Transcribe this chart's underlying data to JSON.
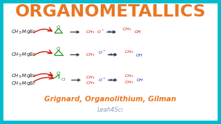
{
  "title": "ORGANOMETALLICS",
  "title_color": "#E87722",
  "title_fontsize": 18,
  "subtitle": "Grignard, Organolithium, Gilman",
  "subtitle_color": "#E87722",
  "subtitle_fontsize": 7.5,
  "watermark": "Leah4Sci",
  "watermark_color": "#8899BB",
  "bg_color": "#FFFFFF",
  "border_color": "#00BBCC",
  "border_width": 7,
  "text_color_black": "#222222",
  "text_color_green": "#228B22",
  "text_color_red": "#CC1100",
  "text_color_blue": "#1133BB"
}
